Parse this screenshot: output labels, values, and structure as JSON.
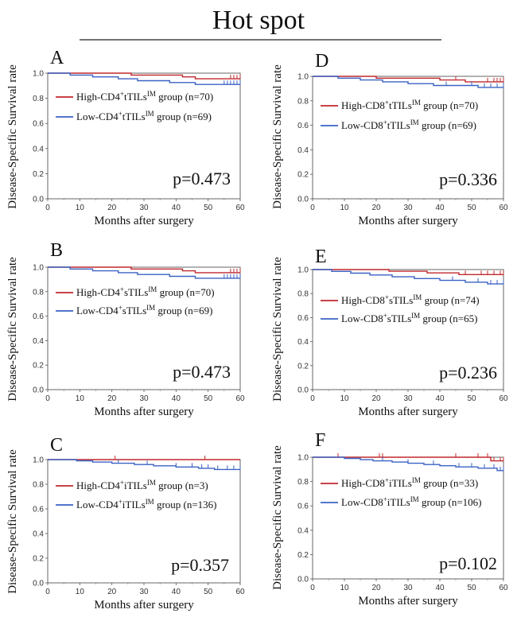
{
  "figure": {
    "title": "Hot spot"
  },
  "chart_data": [
    {
      "type": "line",
      "panel": "A",
      "p_value": "p=0.473",
      "xlabel": "Months after surgery",
      "ylabel": "Disease-Specific Survival rate",
      "xlim": [
        0,
        60
      ],
      "ylim": [
        0.0,
        1.0
      ],
      "xticks": [
        "0",
        "10",
        "20",
        "30",
        "40",
        "50",
        "60"
      ],
      "yticks": [
        "0.0",
        "0.2",
        "0.4",
        "0.6",
        "0.8",
        "1.0"
      ],
      "legend_position": "top-right",
      "series": [
        {
          "color": "#c0282d",
          "legend": [
            "High-CD4",
            "+",
            "tTILs",
            "IM",
            " group (n=70)"
          ],
          "points": [
            [
              0,
              1.0
            ],
            [
              26,
              1.0
            ],
            [
              26,
              0.985
            ],
            [
              42,
              0.985
            ],
            [
              42,
              0.97
            ],
            [
              46,
              0.97
            ],
            [
              46,
              0.955
            ],
            [
              60,
              0.955
            ]
          ],
          "censors": [
            57,
            58,
            59,
            60
          ]
        },
        {
          "color": "#3a62c4",
          "legend": [
            "Low-CD4",
            "+",
            "tTILs",
            "IM",
            " group (n=69)"
          ],
          "points": [
            [
              0,
              1.0
            ],
            [
              7,
              1.0
            ],
            [
              7,
              0.985
            ],
            [
              14,
              0.985
            ],
            [
              14,
              0.97
            ],
            [
              22,
              0.97
            ],
            [
              22,
              0.955
            ],
            [
              28,
              0.955
            ],
            [
              28,
              0.94
            ],
            [
              38,
              0.94
            ],
            [
              38,
              0.925
            ],
            [
              46,
              0.925
            ],
            [
              46,
              0.91
            ],
            [
              60,
              0.91
            ]
          ],
          "censors": [
            55,
            56,
            57,
            58,
            59,
            60
          ]
        }
      ]
    },
    {
      "type": "line",
      "panel": "B",
      "p_value": "p=0.473",
      "xlabel": "Months after surgery",
      "ylabel": "Disease-Specific Survival rate",
      "xlim": [
        0,
        60
      ],
      "ylim": [
        0.0,
        1.0
      ],
      "xticks": [
        "0",
        "10",
        "20",
        "30",
        "40",
        "50",
        "60"
      ],
      "yticks": [
        "0.0",
        "0.2",
        "0.4",
        "0.6",
        "0.8",
        "1.0"
      ],
      "legend_position": "top-right",
      "series": [
        {
          "color": "#c0282d",
          "legend": [
            "High-CD4",
            "+",
            "sTILs",
            "IM",
            " group (n=70)"
          ],
          "points": [
            [
              0,
              1.0
            ],
            [
              26,
              1.0
            ],
            [
              26,
              0.985
            ],
            [
              42,
              0.985
            ],
            [
              42,
              0.97
            ],
            [
              46,
              0.97
            ],
            [
              46,
              0.955
            ],
            [
              60,
              0.955
            ]
          ],
          "censors": [
            57,
            58,
            59,
            60
          ]
        },
        {
          "color": "#3a62c4",
          "legend": [
            "Low-CD4",
            "+",
            "sTILs",
            "IM",
            " group (n=69)"
          ],
          "points": [
            [
              0,
              1.0
            ],
            [
              7,
              1.0
            ],
            [
              7,
              0.985
            ],
            [
              14,
              0.985
            ],
            [
              14,
              0.97
            ],
            [
              22,
              0.97
            ],
            [
              22,
              0.955
            ],
            [
              28,
              0.955
            ],
            [
              28,
              0.94
            ],
            [
              38,
              0.94
            ],
            [
              38,
              0.925
            ],
            [
              46,
              0.925
            ],
            [
              46,
              0.91
            ],
            [
              60,
              0.91
            ]
          ],
          "censors": [
            55,
            56,
            57,
            58,
            59,
            60
          ]
        }
      ]
    },
    {
      "type": "line",
      "panel": "C",
      "p_value": "p=0.357",
      "xlabel": "Months after surgery",
      "ylabel": "Disease-Specific Survival rate",
      "xlim": [
        0,
        60
      ],
      "ylim": [
        0.0,
        1.0
      ],
      "xticks": [
        "0",
        "10",
        "20",
        "30",
        "40",
        "50",
        "60"
      ],
      "yticks": [
        "0.0",
        "0.2",
        "0.4",
        "0.6",
        "0.8",
        "1.0"
      ],
      "legend_position": "top-right",
      "series": [
        {
          "color": "#c0282d",
          "legend": [
            "High-CD4",
            "+",
            "iTILs",
            "IM",
            " group (n=3)"
          ],
          "points": [
            [
              0,
              1.0
            ],
            [
              60,
              1.0
            ]
          ],
          "censors": [
            21,
            49
          ]
        },
        {
          "color": "#3a62c4",
          "legend": [
            "Low-CD4",
            "+",
            "iTILs",
            "IM",
            " group (n=136)"
          ],
          "points": [
            [
              0,
              1.0
            ],
            [
              9,
              1.0
            ],
            [
              9,
              0.99
            ],
            [
              14,
              0.99
            ],
            [
              14,
              0.98
            ],
            [
              20,
              0.98
            ],
            [
              20,
              0.97
            ],
            [
              27,
              0.97
            ],
            [
              27,
              0.96
            ],
            [
              33,
              0.96
            ],
            [
              33,
              0.95
            ],
            [
              40,
              0.95
            ],
            [
              40,
              0.94
            ],
            [
              47,
              0.94
            ],
            [
              47,
              0.93
            ],
            [
              52,
              0.93
            ],
            [
              52,
              0.92
            ],
            [
              60,
              0.92
            ]
          ],
          "censors": [
            22,
            31,
            40,
            45,
            48,
            50,
            53,
            56,
            58,
            60
          ]
        }
      ]
    },
    {
      "type": "line",
      "panel": "D",
      "p_value": "p=0.336",
      "xlabel": "Months after surgery",
      "ylabel": "Disease-Specific Survival rate",
      "xlim": [
        0,
        60
      ],
      "ylim": [
        0.0,
        1.0
      ],
      "xticks": [
        "0",
        "10",
        "20",
        "30",
        "40",
        "50",
        "60"
      ],
      "yticks": [
        "0.0",
        "0.2",
        "0.4",
        "0.6",
        "0.8",
        "1.0"
      ],
      "legend_position": "top-right",
      "series": [
        {
          "color": "#c0282d",
          "legend": [
            "High-CD8",
            "+",
            "tTILs",
            "IM",
            " group (n=70)"
          ],
          "points": [
            [
              0,
              1.0
            ],
            [
              20,
              1.0
            ],
            [
              20,
              0.985
            ],
            [
              40,
              0.985
            ],
            [
              40,
              0.97
            ],
            [
              48,
              0.97
            ],
            [
              48,
              0.955
            ],
            [
              60,
              0.955
            ]
          ],
          "censors": [
            45,
            55,
            57,
            58,
            59,
            60
          ]
        },
        {
          "color": "#3a62c4",
          "legend": [
            "Low-CD8",
            "+",
            "tTILs",
            "IM",
            " group (n=69)"
          ],
          "points": [
            [
              0,
              1.0
            ],
            [
              8,
              1.0
            ],
            [
              8,
              0.985
            ],
            [
              15,
              0.985
            ],
            [
              15,
              0.97
            ],
            [
              22,
              0.97
            ],
            [
              22,
              0.955
            ],
            [
              30,
              0.955
            ],
            [
              30,
              0.94
            ],
            [
              38,
              0.94
            ],
            [
              38,
              0.925
            ],
            [
              52,
              0.925
            ],
            [
              52,
              0.91
            ],
            [
              60,
              0.91
            ]
          ],
          "censors": [
            42,
            50,
            54,
            56,
            58,
            60
          ]
        }
      ]
    },
    {
      "type": "line",
      "panel": "E",
      "p_value": "p=0.236",
      "xlabel": "Months after surgery",
      "ylabel": "Disease-Specific Survival rate",
      "xlim": [
        0,
        60
      ],
      "ylim": [
        0.0,
        1.0
      ],
      "xticks": [
        "0",
        "10",
        "20",
        "30",
        "40",
        "50",
        "60"
      ],
      "yticks": [
        "0.0",
        "0.2",
        "0.4",
        "0.6",
        "0.8",
        "1.0"
      ],
      "legend_position": "top-right",
      "series": [
        {
          "color": "#c0282d",
          "legend": [
            "High-CD8",
            "+",
            "sTILs",
            "IM",
            " group (n=74)"
          ],
          "points": [
            [
              0,
              1.0
            ],
            [
              24,
              1.0
            ],
            [
              24,
              0.986
            ],
            [
              36,
              0.986
            ],
            [
              36,
              0.972
            ],
            [
              46,
              0.972
            ],
            [
              46,
              0.958
            ],
            [
              60,
              0.958
            ]
          ],
          "censors": [
            48,
            53,
            55,
            57,
            59,
            60
          ]
        },
        {
          "color": "#3a62c4",
          "legend": [
            "Low-CD8",
            "+",
            "sTILs",
            "IM",
            " group (n=65)"
          ],
          "points": [
            [
              0,
              1.0
            ],
            [
              6,
              1.0
            ],
            [
              6,
              0.985
            ],
            [
              12,
              0.985
            ],
            [
              12,
              0.97
            ],
            [
              18,
              0.97
            ],
            [
              18,
              0.955
            ],
            [
              25,
              0.955
            ],
            [
              25,
              0.94
            ],
            [
              32,
              0.94
            ],
            [
              32,
              0.925
            ],
            [
              40,
              0.925
            ],
            [
              40,
              0.91
            ],
            [
              48,
              0.91
            ],
            [
              48,
              0.895
            ],
            [
              55,
              0.895
            ],
            [
              55,
              0.88
            ],
            [
              60,
              0.88
            ]
          ],
          "censors": [
            44,
            52,
            56,
            58,
            60
          ]
        }
      ]
    },
    {
      "type": "line",
      "panel": "F",
      "p_value": "p=0.102",
      "xlabel": "Months after surgery",
      "ylabel": "Disease-Specific Survival rate",
      "xlim": [
        0,
        60
      ],
      "ylim": [
        0.0,
        1.0
      ],
      "xticks": [
        "0",
        "10",
        "20",
        "30",
        "40",
        "50",
        "60"
      ],
      "yticks": [
        "0.0",
        "0.2",
        "0.4",
        "0.6",
        "0.8",
        "1.0"
      ],
      "legend_position": "top-right",
      "series": [
        {
          "color": "#c0282d",
          "legend": [
            "High-CD8",
            "+",
            "iTILs",
            "IM",
            " group (n=33)"
          ],
          "points": [
            [
              0,
              1.0
            ],
            [
              56,
              1.0
            ],
            [
              56,
              0.97
            ],
            [
              60,
              0.97
            ]
          ],
          "censors": [
            8,
            21,
            22,
            45,
            52,
            55,
            57,
            59,
            60
          ]
        },
        {
          "color": "#3a62c4",
          "legend": [
            "Low-CD8",
            "+",
            "iTILs",
            "IM",
            " group (n=106)"
          ],
          "points": [
            [
              0,
              1.0
            ],
            [
              10,
              1.0
            ],
            [
              10,
              0.99
            ],
            [
              15,
              0.99
            ],
            [
              15,
              0.98
            ],
            [
              19,
              0.98
            ],
            [
              19,
              0.97
            ],
            [
              25,
              0.97
            ],
            [
              25,
              0.96
            ],
            [
              30,
              0.96
            ],
            [
              30,
              0.95
            ],
            [
              35,
              0.95
            ],
            [
              35,
              0.94
            ],
            [
              40,
              0.94
            ],
            [
              40,
              0.93
            ],
            [
              45,
              0.93
            ],
            [
              45,
              0.92
            ],
            [
              52,
              0.92
            ],
            [
              52,
              0.91
            ],
            [
              58,
              0.91
            ],
            [
              58,
              0.89
            ],
            [
              60,
              0.89
            ]
          ],
          "censors": [
            22,
            30,
            38,
            46,
            50,
            54,
            57,
            59,
            60
          ]
        }
      ]
    }
  ]
}
